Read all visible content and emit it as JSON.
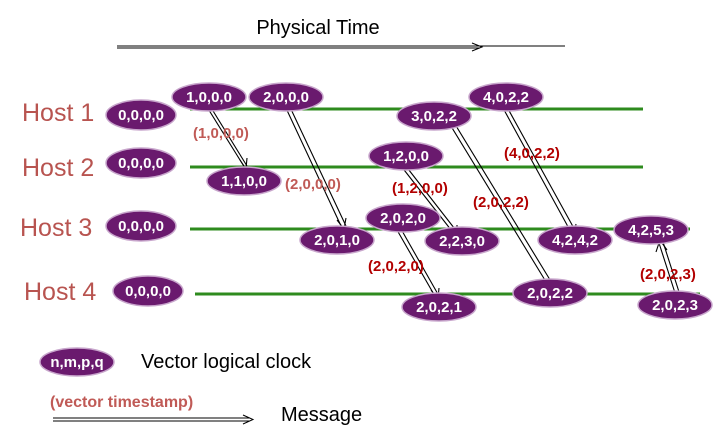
{
  "title": "Physical Time",
  "hosts": [
    {
      "label": "Host 1",
      "initial": "0,0,0,0"
    },
    {
      "label": "Host 2",
      "initial": "0,0,0,0"
    },
    {
      "label": "Host 3",
      "initial": "0,0,0,0"
    },
    {
      "label": "Host 4",
      "initial": "0,0,0,0"
    }
  ],
  "events": [
    {
      "id": "h1-e1",
      "host": 1,
      "clock": "1,0,0,0"
    },
    {
      "id": "h1-e2",
      "host": 1,
      "clock": "2,0,0,0"
    },
    {
      "id": "h1-e3",
      "host": 1,
      "clock": "3,0,2,2"
    },
    {
      "id": "h1-e4",
      "host": 1,
      "clock": "4,0,2,2"
    },
    {
      "id": "h2-e1",
      "host": 2,
      "clock": "1,1,0,0"
    },
    {
      "id": "h2-e2",
      "host": 2,
      "clock": "1,2,0,0"
    },
    {
      "id": "h3-e1",
      "host": 3,
      "clock": "2,0,1,0"
    },
    {
      "id": "h3-e2",
      "host": 3,
      "clock": "2,0,2,0"
    },
    {
      "id": "h3-e3",
      "host": 3,
      "clock": "2,2,3,0"
    },
    {
      "id": "h3-e4",
      "host": 3,
      "clock": "4,2,4,2"
    },
    {
      "id": "h3-e5",
      "host": 3,
      "clock": "4,2,5,3"
    },
    {
      "id": "h4-e1",
      "host": 4,
      "clock": "2,0,2,1"
    },
    {
      "id": "h4-e2",
      "host": 4,
      "clock": "2,0,2,2"
    },
    {
      "id": "h4-e3",
      "host": 4,
      "clock": "2,0,2,3"
    }
  ],
  "messages": [
    {
      "from": "h1-e1",
      "to": "h2-e1",
      "timestamp": "(1,0,0,0)"
    },
    {
      "from": "h1-e2",
      "to": "h3-e1",
      "timestamp": "(2,0,0,0)"
    },
    {
      "from": "h2-e2",
      "to": "h3-e3",
      "timestamp": "(1,2,0,0)"
    },
    {
      "from": "h3-e2",
      "to": "h4-e1",
      "timestamp": "(2,0,2,0)"
    },
    {
      "from": "h4-e2",
      "to": "h1-e3",
      "timestamp": "(2,0,2,2)"
    },
    {
      "from": "h1-e4",
      "to": "h3-e4",
      "timestamp": "(4,0,2,2)"
    },
    {
      "from": "h4-e3",
      "to": "h3-e5",
      "timestamp": "(2,0,2,3)"
    }
  ],
  "legend": {
    "clock_symbol": "n,m,p,q",
    "clock_label": "Vector logical clock",
    "message_symbol": "(vector timestamp)",
    "message_label": "Message"
  },
  "colors": {
    "clock_fill": "#6a1a6e",
    "timeline": "#2e8b1e",
    "host_label": "#b85450",
    "timestamp": "#b20000"
  }
}
